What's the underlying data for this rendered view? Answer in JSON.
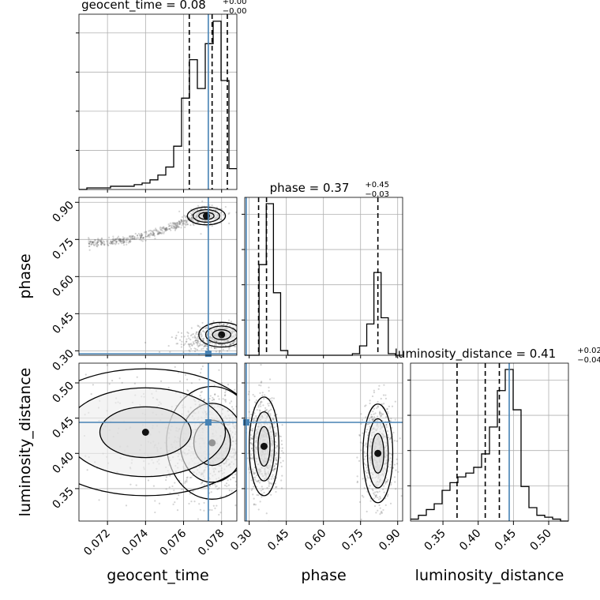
{
  "chart_data": {
    "type": "corner",
    "colors": {
      "truth": "#4682b4",
      "hist": "#000000",
      "sample": "#555555",
      "grid": "#b0b0b0"
    },
    "params": [
      "geocent_time",
      "phase",
      "luminosity_distance"
    ],
    "titles": [
      {
        "main": "geocent_time = 0.08",
        "sup": "+0.00",
        "sub": "−0.00"
      },
      {
        "main": "phase = 0.37",
        "sup": "+0.45",
        "sub": "−0.03"
      },
      {
        "main": "luminosity_distance = 0.41",
        "sup": "+0.02",
        "sub": "−0.04"
      }
    ],
    "xlabels": [
      "geocent_time",
      "phase",
      "luminosity_distance"
    ],
    "ylabels": [
      "",
      "phase",
      "luminosity_distance"
    ],
    "ranges": [
      [
        0.0705,
        0.0788
      ],
      [
        0.282,
        0.92
      ],
      [
        0.304,
        0.528
      ]
    ],
    "ticks": {
      "geocent_time": [
        {
          "v": 0.072,
          "label": "0.072"
        },
        {
          "v": 0.074,
          "label": "0.074"
        },
        {
          "v": 0.076,
          "label": "0.076"
        },
        {
          "v": 0.078,
          "label": "0.078"
        }
      ],
      "phase": [
        {
          "v": 0.3,
          "label": "0.30"
        },
        {
          "v": 0.45,
          "label": "0.45"
        },
        {
          "v": 0.6,
          "label": "0.60"
        },
        {
          "v": 0.75,
          "label": "0.75"
        },
        {
          "v": 0.9,
          "label": "0.90"
        }
      ],
      "luminosity_distance": [
        {
          "v": 0.35,
          "label": "0.35"
        },
        {
          "v": 0.4,
          "label": "0.40"
        },
        {
          "v": 0.45,
          "label": "0.45"
        },
        {
          "v": 0.5,
          "label": "0.50"
        }
      ]
    },
    "truths": [
      0.0773,
      0.288,
      0.444
    ],
    "quantiles": [
      [
        0.0763,
        0.0775,
        0.0783
      ],
      [
        0.338,
        0.37,
        0.82
      ],
      [
        0.37,
        0.41,
        0.43
      ]
    ],
    "hist": [
      {
        "edges_range": [
          0.0705,
          0.0788
        ],
        "counts": [
          0,
          1,
          1,
          1,
          2,
          2,
          2,
          3,
          4,
          6,
          9,
          14,
          27,
          57,
          81,
          63,
          91,
          105,
          68,
          13
        ]
      },
      {
        "edges_range": [
          0.282,
          0.92
        ],
        "counts": [
          0,
          0,
          58,
          97,
          40,
          3,
          0,
          0,
          0,
          0,
          0,
          0,
          0,
          0,
          0,
          1,
          6,
          20,
          53,
          24,
          1,
          0
        ]
      },
      {
        "edges_range": [
          0.304,
          0.528
        ],
        "counts": [
          1,
          3,
          6,
          9,
          16,
          20,
          23,
          25,
          28,
          35,
          49,
          68,
          79,
          58,
          18,
          7,
          3,
          2,
          1,
          0
        ]
      }
    ],
    "samples": {
      "gt_phase": [
        {
          "cx": 0.074,
          "cy": 0.8,
          "sx": 0.0024,
          "sy": 0.04,
          "n": 420,
          "slope": 11.0
        },
        {
          "cx": 0.0772,
          "cy": 0.845,
          "sx": 0.0005,
          "sy": 0.018,
          "n": 260,
          "slope": 0
        },
        {
          "cx": 0.078,
          "cy": 0.365,
          "sx": 0.0006,
          "sy": 0.025,
          "n": 420,
          "slope": 0
        },
        {
          "cx": 0.077,
          "cy": 0.33,
          "sx": 0.0008,
          "sy": 0.02,
          "n": 150,
          "slope": 0
        }
      ],
      "gt_dl": [
        {
          "cx": 0.0775,
          "cy": 0.415,
          "sx": 0.0012,
          "sy": 0.04,
          "n": 900,
          "slope": 0
        },
        {
          "cx": 0.074,
          "cy": 0.43,
          "sx": 0.003,
          "sy": 0.045,
          "n": 220,
          "slope": 0
        }
      ],
      "phase_dl": [
        {
          "cx": 0.36,
          "cy": 0.41,
          "sx": 0.03,
          "sy": 0.035,
          "n": 700,
          "slope": 0
        },
        {
          "cx": 0.82,
          "cy": 0.4,
          "sx": 0.03,
          "sy": 0.035,
          "n": 600,
          "slope": 0
        }
      ]
    }
  }
}
